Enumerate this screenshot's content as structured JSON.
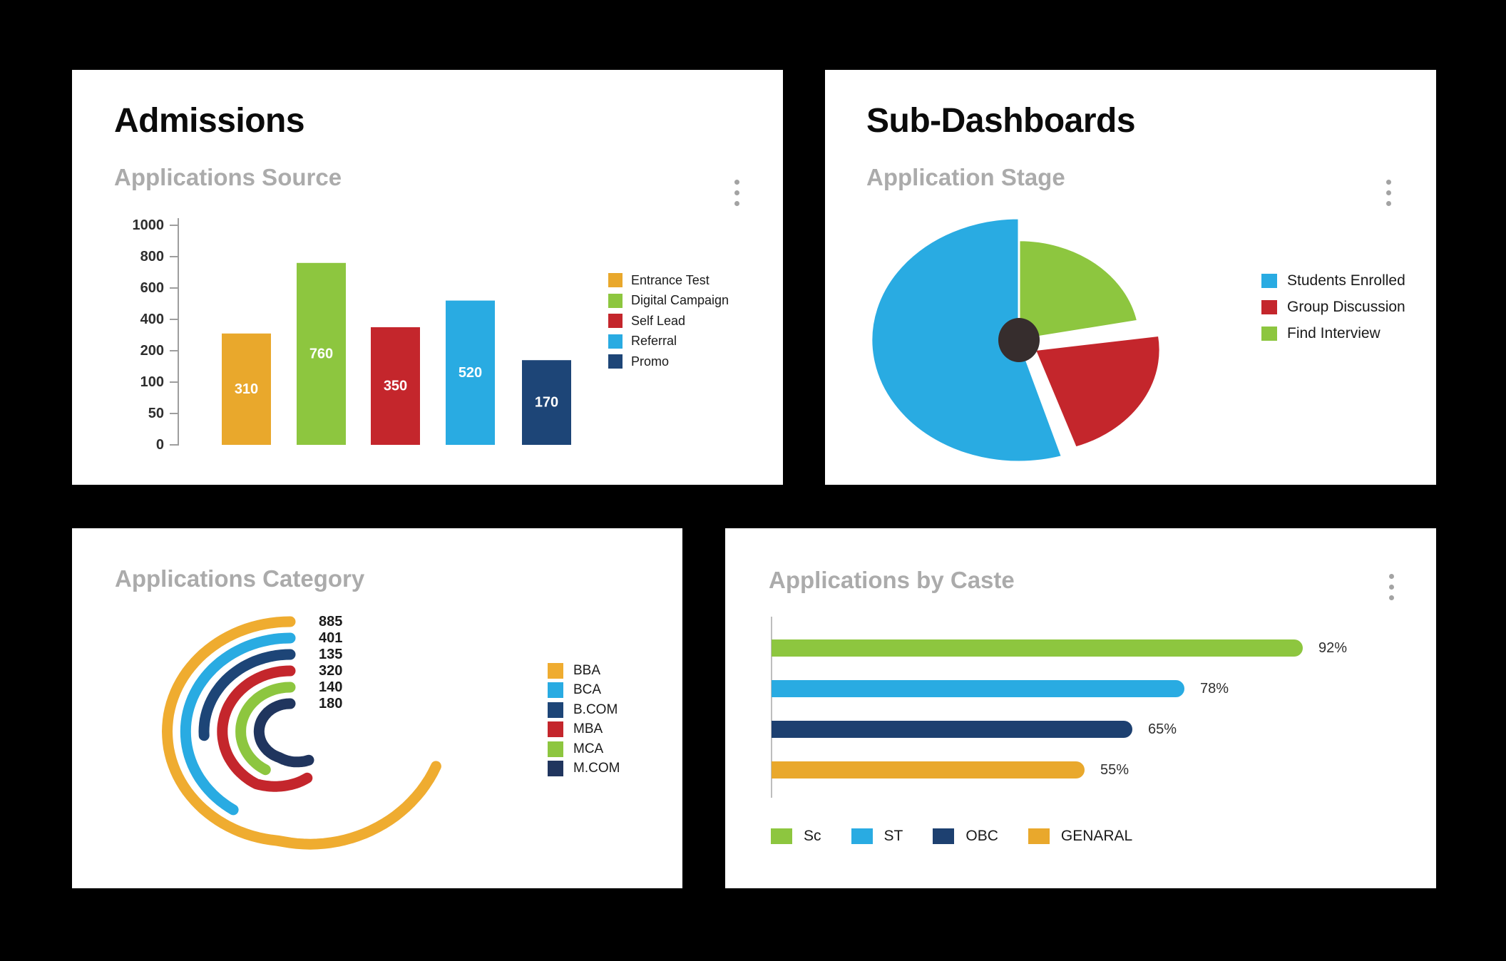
{
  "page": {
    "background": "#000000",
    "panel_background": "#FFFFFF",
    "subtitle_color": "#ABABAB"
  },
  "panels": {
    "admissions": {
      "title": "Admissions",
      "subtitle": "Applications Source",
      "menu_icon": "kebab-menu"
    },
    "sub_dashboards": {
      "title": "Sub-Dashboards",
      "subtitle": "Application Stage",
      "menu_icon": "kebab-menu"
    },
    "applications_category": {
      "subtitle": "Applications Category"
    },
    "applications_by_caste": {
      "subtitle": "Applications by Caste",
      "menu_icon": "kebab-menu"
    }
  },
  "chart_data": [
    {
      "id": "applications_source",
      "type": "bar",
      "title": "Applications Source",
      "categories": [
        "Entrance Test",
        "Digital Campaign",
        "Self Lead",
        "Referral",
        "Promo"
      ],
      "values": [
        310,
        760,
        350,
        520,
        170
      ],
      "colors": [
        "#E9A82C",
        "#8DC63F",
        "#C4262C",
        "#29ABE2",
        "#1D4577"
      ],
      "y_ticks": [
        0,
        50,
        100,
        200,
        400,
        600,
        800,
        1000
      ],
      "ylim": [
        0,
        1000
      ],
      "grid": false,
      "bar_value_labels_shown": true,
      "legend_position": "right"
    },
    {
      "id": "application_stage",
      "type": "pie",
      "title": "Application Stage",
      "labels": [
        "Students Enrolled",
        "Group Discussion",
        "Find Interview"
      ],
      "values_pct_estimated": [
        55,
        23,
        22
      ],
      "colors": [
        "#29ABE2",
        "#C4262C",
        "#8DC63F"
      ],
      "donut_hole_color": "#362D2D",
      "exploded_slice": "Group Discussion",
      "start_angle": "12-o'clock",
      "legend_position": "right"
    },
    {
      "id": "applications_category",
      "type": "radial-bar",
      "title": "Applications Category",
      "categories": [
        "BBA",
        "BCA",
        "B.COM",
        "MBA",
        "MCA",
        "M.COM"
      ],
      "values": [
        885,
        401,
        135,
        320,
        140,
        180
      ],
      "colors": [
        "#EFAC30",
        "#29ABE2",
        "#1D4577",
        "#C4262C",
        "#8DC63F",
        "#20355E"
      ],
      "start_angle": "12-o'clock",
      "direction": "counterclockwise",
      "value_labels_shown": true,
      "legend_position": "right"
    },
    {
      "id": "applications_by_caste",
      "type": "bar",
      "orientation": "horizontal",
      "title": "Applications by Caste",
      "categories": [
        "Sc",
        "ST",
        "OBC",
        "GENARAL"
      ],
      "values_pct": [
        92,
        78,
        65,
        55
      ],
      "colors": [
        "#8DC63F",
        "#29ABE2",
        "#1D4070",
        "#E9A82C"
      ],
      "xlim": [
        0,
        100
      ],
      "grid": false,
      "legend_position": "bottom"
    }
  ]
}
